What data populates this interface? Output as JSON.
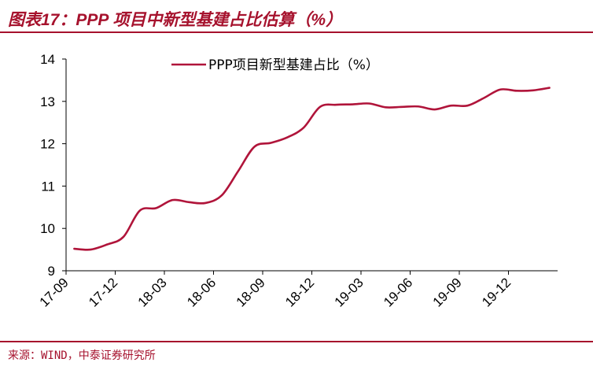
{
  "header": {
    "title": "图表17：PPP 项目中新型基建占比估算（%）"
  },
  "footer": {
    "source": "来源：WIND，中泰证券研究所"
  },
  "colors": {
    "accent": "#a6122d",
    "series": "#b0143a"
  },
  "chart_data": {
    "type": "line",
    "title": "图表17：PPP 项目中新型基建占比估算（%）",
    "xlabel": "",
    "ylabel": "",
    "ylim": [
      9,
      14
    ],
    "yticks": [
      9,
      10,
      11,
      12,
      13,
      14
    ],
    "legend_position": "top-center",
    "x_tick_labels": [
      "17-09",
      "17-12",
      "18-03",
      "18-06",
      "18-09",
      "18-12",
      "19-03",
      "19-06",
      "19-09",
      "19-12"
    ],
    "x_tick_index": [
      0,
      3,
      6,
      9,
      12,
      15,
      18,
      21,
      24,
      27
    ],
    "x_count": 30,
    "series": [
      {
        "name": "PPP项目新型基建占比（%）",
        "values": [
          9.52,
          9.5,
          9.62,
          9.8,
          10.42,
          10.48,
          10.67,
          10.62,
          10.6,
          10.78,
          11.35,
          11.93,
          12.02,
          12.15,
          12.38,
          12.87,
          12.92,
          12.93,
          12.95,
          12.86,
          12.87,
          12.88,
          12.81,
          12.9,
          12.9,
          13.08,
          13.28,
          13.25,
          13.26,
          13.32
        ]
      }
    ]
  }
}
